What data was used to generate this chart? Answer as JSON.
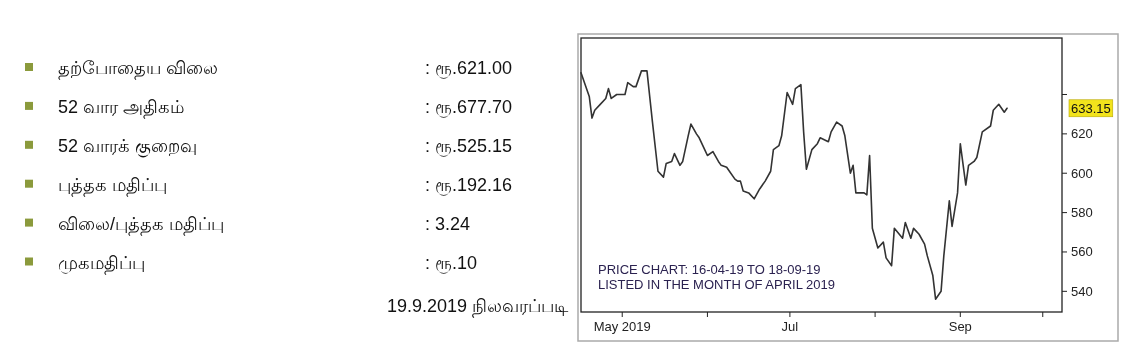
{
  "chart_data": [
    {
      "type": "other",
      "categories": [
        "தற்போதைய விலை",
        "52 வார அதிகம்",
        "52 வாரக் குறைவு",
        "புத்தக மதிப்பு",
        "விலை/புத்தக மதிப்பு",
        "முகமதிப்பு"
      ],
      "value_labels": [
        ": ரூ.621.00",
        ": ரூ.677.70",
        ": ரூ.525.15",
        ": ரூ.192.16",
        ": 3.24",
        ": ரூ.10"
      ],
      "color": "#8b9a3c",
      "annotations": [
        "19.9.2019 நிலவரப்படி"
      ]
    },
    {
      "type": "line",
      "x": [
        "2019-04-16",
        "2019-04-19",
        "2019-04-20",
        "2019-04-21",
        "2019-04-23",
        "2019-04-25",
        "2019-04-26",
        "2019-04-27",
        "2019-04-29",
        "2019-05-02",
        "2019-05-03",
        "2019-05-05",
        "2019-05-06",
        "2019-05-08",
        "2019-05-10",
        "2019-05-12",
        "2019-05-14",
        "2019-05-16",
        "2019-05-17",
        "2019-05-19",
        "2019-05-20",
        "2019-05-22",
        "2019-05-23",
        "2019-05-25",
        "2019-05-26",
        "2019-05-28",
        "2019-05-29",
        "2019-05-31",
        "2019-06-01",
        "2019-06-03",
        "2019-06-05",
        "2019-06-06",
        "2019-06-08",
        "2019-06-09",
        "2019-06-11",
        "2019-06-12",
        "2019-06-13",
        "2019-06-14",
        "2019-06-16",
        "2019-06-18",
        "2019-06-20",
        "2019-06-22",
        "2019-06-24",
        "2019-06-25",
        "2019-06-27",
        "2019-06-28",
        "2019-06-30",
        "2019-07-02",
        "2019-07-03",
        "2019-07-05",
        "2019-07-06",
        "2019-07-07",
        "2019-07-09",
        "2019-07-11",
        "2019-07-12",
        "2019-07-15",
        "2019-07-16",
        "2019-07-18",
        "2019-07-20",
        "2019-07-21",
        "2019-07-23",
        "2019-07-24",
        "2019-07-25",
        "2019-07-28",
        "2019-07-29",
        "2019-07-30",
        "2019-07-31",
        "2019-08-02",
        "2019-08-04",
        "2019-08-05",
        "2019-08-07",
        "2019-08-08",
        "2019-08-11",
        "2019-08-12",
        "2019-08-14",
        "2019-08-15",
        "2019-08-17",
        "2019-08-19",
        "2019-08-20",
        "2019-08-22",
        "2019-08-23",
        "2019-08-25",
        "2019-08-26",
        "2019-08-28",
        "2019-08-29",
        "2019-08-31",
        "2019-09-01",
        "2019-09-03",
        "2019-09-04",
        "2019-09-06",
        "2019-09-07",
        "2019-09-09",
        "2019-09-12",
        "2019-09-13",
        "2019-09-15",
        "2019-09-17",
        "2019-09-18"
      ],
      "series": [
        {
          "color": "#333333",
          "values": [
            651,
            639,
            628,
            632,
            635,
            638,
            643,
            638,
            640,
            640,
            646,
            644,
            644,
            652,
            652,
            626,
            601,
            598,
            605,
            606,
            610,
            604,
            606,
            619,
            625,
            620,
            618,
            612,
            609,
            611,
            606,
            604,
            603,
            601,
            597,
            596,
            596,
            591,
            590,
            587,
            592,
            596,
            601,
            612,
            614,
            619,
            641,
            635,
            643,
            645,
            621,
            602,
            612,
            615,
            618,
            616,
            621,
            626,
            624,
            619,
            600,
            604,
            590,
            590,
            589,
            609,
            572,
            562,
            565,
            557,
            553,
            572,
            567,
            575,
            567,
            572,
            569,
            564,
            558,
            548,
            536,
            540,
            558,
            586,
            573,
            590,
            615,
            594,
            604,
            606,
            608,
            621,
            624,
            632,
            635,
            631,
            633
          ]
        }
      ],
      "xlim": [
        "2019-04-16",
        "2019-10-08"
      ],
      "xticks": [
        {
          "value": "2019-05-01",
          "label": "May 2019"
        },
        {
          "value": "2019-06-01",
          "label": null
        },
        {
          "value": "2019-07-01",
          "label": "Jul"
        },
        {
          "value": "2019-08-01",
          "label": null
        },
        {
          "value": "2019-09-01",
          "label": "Sep"
        },
        {
          "value": "2019-10-01",
          "label": null
        }
      ],
      "ylim": [
        529.5,
        668.7
      ],
      "yticks": [
        540,
        560,
        580,
        600,
        620,
        {
          "value": 640,
          "label": null
        }
      ],
      "grid": false,
      "line_style": "solid",
      "marker": "none",
      "annotations": [
        "PRICE CHART: 16-04-19 TO 18-09-19",
        "LISTED IN THE MONTH OF APRIL 2019",
        "633.15"
      ]
    }
  ]
}
